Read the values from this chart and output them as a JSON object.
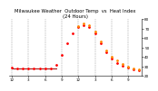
{
  "title": "Milwaukee Weather  Outdoor Temp  vs  Heat Index\n(24 Hours)",
  "title_fontsize": 3.8,
  "bg_color": "#ffffff",
  "plot_bg_color": "#ffffff",
  "grid_color": "#999999",
  "hours": [
    0,
    1,
    2,
    3,
    4,
    5,
    6,
    7,
    8,
    9,
    10,
    11,
    12,
    13,
    14,
    15,
    16,
    17,
    18,
    19,
    20,
    21,
    22,
    23
  ],
  "temp": [
    29,
    28,
    28,
    28,
    28,
    28,
    28,
    28,
    32,
    42,
    55,
    65,
    72,
    74,
    72,
    65,
    55,
    45,
    38,
    34,
    31,
    29,
    27,
    26
  ],
  "heat_index_hours": [
    12,
    13,
    14,
    15,
    16,
    17,
    18,
    19,
    20,
    21,
    22,
    23
  ],
  "heat_index_vals": [
    73,
    76,
    74,
    67,
    57,
    47,
    40,
    36,
    33,
    30,
    28,
    27
  ],
  "outdoor_temp_color": "#ff0000",
  "heat_index_color": "#ff8800",
  "flat_line_color": "#990000",
  "flat_line_x_start": 0,
  "flat_line_x_end": 8,
  "flat_line_y": 28,
  "ylim": [
    20,
    80
  ],
  "ytick_values": [
    20,
    30,
    40,
    50,
    60,
    70,
    80
  ],
  "xtick_positions": [
    0,
    3,
    6,
    9,
    12,
    15,
    18,
    21
  ],
  "xtick_labels": [
    "12",
    "3",
    "6",
    "9",
    "12",
    "3",
    "6",
    "9"
  ],
  "marker_size": 2.0,
  "line_width": 0.7,
  "dpi": 100
}
